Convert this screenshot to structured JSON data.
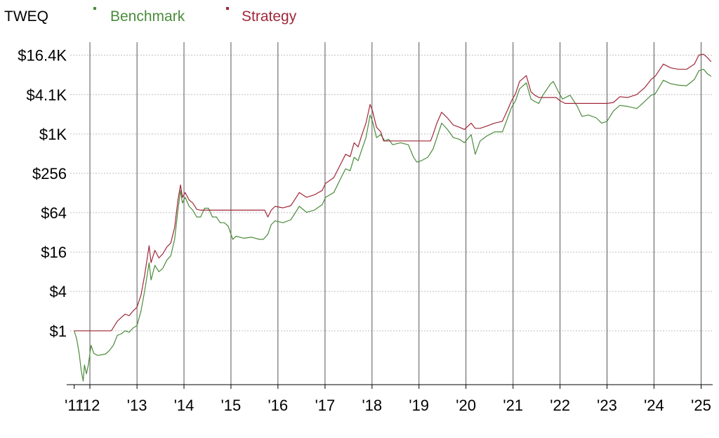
{
  "title": "TWEQ",
  "colors": {
    "benchmark": "#4b8b3b",
    "strategy": "#a0283a",
    "text": "#000000",
    "grid_major": "#555555",
    "grid_minor": "#bfbfbf",
    "background": "#ffffff"
  },
  "chart_data": {
    "type": "line",
    "title": "TWEQ",
    "xlabel": "",
    "ylabel": "",
    "y_scale": "log2",
    "ylim": [
      0.15,
      26000
    ],
    "xlim": [
      "2011-08-01",
      "2025-04-01"
    ],
    "y_ticks": [
      {
        "value": 1,
        "label": "$1"
      },
      {
        "value": 4,
        "label": "$4"
      },
      {
        "value": 16,
        "label": "$16"
      },
      {
        "value": 64,
        "label": "$64"
      },
      {
        "value": 256,
        "label": "$256"
      },
      {
        "value": 1024,
        "label": "$1K"
      },
      {
        "value": 4096,
        "label": "$4.1K"
      },
      {
        "value": 16384,
        "label": "$16.4K"
      }
    ],
    "x_ticks": [
      {
        "date": "2011-09-01",
        "label": "'11"
      },
      {
        "date": "2012-01-01",
        "label": "'12"
      },
      {
        "date": "2013-01-01",
        "label": "'13"
      },
      {
        "date": "2014-01-01",
        "label": "'14"
      },
      {
        "date": "2015-01-01",
        "label": "'15"
      },
      {
        "date": "2016-01-01",
        "label": "'16"
      },
      {
        "date": "2017-01-01",
        "label": "'17"
      },
      {
        "date": "2018-01-01",
        "label": "'18"
      },
      {
        "date": "2019-01-01",
        "label": "'19"
      },
      {
        "date": "2020-01-01",
        "label": "'20"
      },
      {
        "date": "2021-01-01",
        "label": "'21"
      },
      {
        "date": "2022-01-01",
        "label": "'22"
      },
      {
        "date": "2023-01-01",
        "label": "'23"
      },
      {
        "date": "2024-01-01",
        "label": "'24"
      },
      {
        "date": "2025-01-01",
        "label": "'25"
      }
    ],
    "legend_position": "top",
    "grid": true,
    "series": [
      {
        "name": "Benchmark",
        "color": "#4b8b3b",
        "points": [
          [
            "2011-09-01",
            1.0
          ],
          [
            "2011-09-20",
            0.75
          ],
          [
            "2011-10-10",
            0.45
          ],
          [
            "2011-10-25",
            0.25
          ],
          [
            "2011-11-10",
            0.17
          ],
          [
            "2011-11-20",
            0.3
          ],
          [
            "2011-12-05",
            0.22
          ],
          [
            "2011-12-20",
            0.3
          ],
          [
            "2012-01-10",
            0.6
          ],
          [
            "2012-02-01",
            0.45
          ],
          [
            "2012-03-01",
            0.42
          ],
          [
            "2012-04-01",
            0.43
          ],
          [
            "2012-05-01",
            0.44
          ],
          [
            "2012-06-01",
            0.5
          ],
          [
            "2012-07-01",
            0.6
          ],
          [
            "2012-08-01",
            0.85
          ],
          [
            "2012-09-01",
            0.9
          ],
          [
            "2012-10-01",
            1.0
          ],
          [
            "2012-11-01",
            0.95
          ],
          [
            "2012-12-01",
            1.1
          ],
          [
            "2013-01-01",
            1.2
          ],
          [
            "2013-02-01",
            2.0
          ],
          [
            "2013-03-01",
            4.0
          ],
          [
            "2013-04-05",
            11.0
          ],
          [
            "2013-04-20",
            6.0
          ],
          [
            "2013-05-20",
            10.0
          ],
          [
            "2013-06-20",
            8.0
          ],
          [
            "2013-07-20",
            9.0
          ],
          [
            "2013-08-20",
            12.0
          ],
          [
            "2013-09-20",
            14.0
          ],
          [
            "2013-10-20",
            25.0
          ],
          [
            "2013-11-15",
            70.0
          ],
          [
            "2013-12-05",
            140.0
          ],
          [
            "2013-12-20",
            90.0
          ],
          [
            "2014-01-10",
            110.0
          ],
          [
            "2014-02-10",
            80.0
          ],
          [
            "2014-03-10",
            70.0
          ],
          [
            "2014-04-10",
            55.0
          ],
          [
            "2014-05-10",
            55.0
          ],
          [
            "2014-06-10",
            75.0
          ],
          [
            "2014-07-10",
            75.0
          ],
          [
            "2014-08-10",
            55.0
          ],
          [
            "2014-09-10",
            55.0
          ],
          [
            "2014-10-10",
            45.0
          ],
          [
            "2014-11-10",
            45.0
          ],
          [
            "2014-12-10",
            40.0
          ],
          [
            "2015-01-15",
            25.0
          ],
          [
            "2015-02-10",
            28.0
          ],
          [
            "2015-04-10",
            26.0
          ],
          [
            "2015-06-10",
            27.0
          ],
          [
            "2015-08-10",
            25.0
          ],
          [
            "2015-09-10",
            25.0
          ],
          [
            "2015-10-15",
            30.0
          ],
          [
            "2015-11-10",
            42.0
          ],
          [
            "2015-12-10",
            48.0
          ],
          [
            "2016-02-10",
            45.0
          ],
          [
            "2016-04-10",
            50.0
          ],
          [
            "2016-06-15",
            80.0
          ],
          [
            "2016-08-10",
            65.0
          ],
          [
            "2016-10-10",
            70.0
          ],
          [
            "2016-12-10",
            85.0
          ],
          [
            "2017-01-05",
            110.0
          ],
          [
            "2017-03-10",
            130.0
          ],
          [
            "2017-05-10",
            230.0
          ],
          [
            "2017-06-10",
            300.0
          ],
          [
            "2017-07-15",
            280.0
          ],
          [
            "2017-08-15",
            450.0
          ],
          [
            "2017-09-15",
            400.0
          ],
          [
            "2017-10-15",
            600.0
          ],
          [
            "2017-11-15",
            900.0
          ],
          [
            "2017-12-17",
            2000.0
          ],
          [
            "2018-01-05",
            1600.0
          ],
          [
            "2018-02-05",
            900.0
          ],
          [
            "2018-03-10",
            1000.0
          ],
          [
            "2018-04-10",
            800.0
          ],
          [
            "2018-05-10",
            850.0
          ],
          [
            "2018-06-10",
            700.0
          ],
          [
            "2018-08-10",
            750.0
          ],
          [
            "2018-10-10",
            700.0
          ],
          [
            "2018-11-20",
            450.0
          ],
          [
            "2018-12-15",
            380.0
          ],
          [
            "2019-01-20",
            400.0
          ],
          [
            "2019-03-10",
            450.0
          ],
          [
            "2019-04-20",
            600.0
          ],
          [
            "2019-05-20",
            900.0
          ],
          [
            "2019-06-26",
            1500.0
          ],
          [
            "2019-08-10",
            1200.0
          ],
          [
            "2019-09-25",
            900.0
          ],
          [
            "2019-11-10",
            850.0
          ],
          [
            "2019-12-20",
            750.0
          ],
          [
            "2020-02-10",
            1000.0
          ],
          [
            "2020-03-13",
            500.0
          ],
          [
            "2020-04-20",
            800.0
          ],
          [
            "2020-06-10",
            950.0
          ],
          [
            "2020-08-10",
            1100.0
          ],
          [
            "2020-10-10",
            1100.0
          ],
          [
            "2020-11-20",
            1800.0
          ],
          [
            "2020-12-20",
            2600.0
          ],
          [
            "2021-01-20",
            3300.0
          ],
          [
            "2021-02-20",
            5000.0
          ],
          [
            "2021-04-14",
            6200.0
          ],
          [
            "2021-05-20",
            3500.0
          ],
          [
            "2021-06-20",
            3200.0
          ],
          [
            "2021-07-20",
            3000.0
          ],
          [
            "2021-08-20",
            4000.0
          ],
          [
            "2021-10-20",
            6000.0
          ],
          [
            "2021-11-10",
            6500.0
          ],
          [
            "2021-12-20",
            4500.0
          ],
          [
            "2022-01-20",
            3500.0
          ],
          [
            "2022-03-20",
            4000.0
          ],
          [
            "2022-05-15",
            2700.0
          ],
          [
            "2022-06-20",
            1900.0
          ],
          [
            "2022-08-10",
            2000.0
          ],
          [
            "2022-10-10",
            1800.0
          ],
          [
            "2022-11-20",
            1500.0
          ],
          [
            "2023-01-01",
            1600.0
          ],
          [
            "2023-02-20",
            2300.0
          ],
          [
            "2023-04-10",
            2800.0
          ],
          [
            "2023-06-10",
            2700.0
          ],
          [
            "2023-08-20",
            2500.0
          ],
          [
            "2023-10-20",
            3200.0
          ],
          [
            "2023-12-10",
            4000.0
          ],
          [
            "2024-01-10",
            4200.0
          ],
          [
            "2024-03-14",
            6800.0
          ],
          [
            "2024-05-10",
            6000.0
          ],
          [
            "2024-07-10",
            5700.0
          ],
          [
            "2024-09-10",
            5600.0
          ],
          [
            "2024-11-10",
            7000.0
          ],
          [
            "2024-12-15",
            9500.0
          ],
          [
            "2025-01-20",
            10000.0
          ],
          [
            "2025-02-20",
            8500.0
          ],
          [
            "2025-03-20",
            7800.0
          ]
        ]
      },
      {
        "name": "Strategy",
        "color": "#a0283a",
        "points": [
          [
            "2011-09-01",
            1.0
          ],
          [
            "2012-06-15",
            1.0
          ],
          [
            "2012-08-01",
            1.4
          ],
          [
            "2012-09-01",
            1.6
          ],
          [
            "2012-10-01",
            1.8
          ],
          [
            "2012-11-01",
            1.7
          ],
          [
            "2012-12-01",
            2.0
          ],
          [
            "2013-01-01",
            2.3
          ],
          [
            "2013-02-01",
            3.5
          ],
          [
            "2013-03-01",
            7.0
          ],
          [
            "2013-04-05",
            20.0
          ],
          [
            "2013-04-20",
            11.0
          ],
          [
            "2013-05-20",
            17.0
          ],
          [
            "2013-06-20",
            13.0
          ],
          [
            "2013-07-20",
            15.0
          ],
          [
            "2013-08-20",
            19.0
          ],
          [
            "2013-09-20",
            22.0
          ],
          [
            "2013-10-20",
            38.0
          ],
          [
            "2013-11-15",
            100.0
          ],
          [
            "2013-12-05",
            170.0
          ],
          [
            "2013-12-20",
            110.0
          ],
          [
            "2014-01-10",
            130.0
          ],
          [
            "2014-02-10",
            100.0
          ],
          [
            "2014-03-10",
            90.0
          ],
          [
            "2014-04-10",
            72.0
          ],
          [
            "2014-05-10",
            70.0
          ],
          [
            "2014-06-15",
            70.0
          ],
          [
            "2014-08-01",
            70.0
          ],
          [
            "2015-09-20",
            70.0
          ],
          [
            "2015-10-15",
            55.0
          ],
          [
            "2015-11-10",
            70.0
          ],
          [
            "2015-12-10",
            80.0
          ],
          [
            "2016-02-10",
            76.0
          ],
          [
            "2016-04-10",
            82.0
          ],
          [
            "2016-06-15",
            130.0
          ],
          [
            "2016-08-10",
            110.0
          ],
          [
            "2016-10-10",
            120.0
          ],
          [
            "2016-12-10",
            140.0
          ],
          [
            "2017-01-05",
            180.0
          ],
          [
            "2017-03-10",
            220.0
          ],
          [
            "2017-05-10",
            380.0
          ],
          [
            "2017-06-10",
            500.0
          ],
          [
            "2017-07-15",
            460.0
          ],
          [
            "2017-08-15",
            750.0
          ],
          [
            "2017-09-15",
            650.0
          ],
          [
            "2017-10-15",
            1000.0
          ],
          [
            "2017-11-15",
            1500.0
          ],
          [
            "2017-12-17",
            2900.0
          ],
          [
            "2018-01-05",
            2300.0
          ],
          [
            "2018-02-05",
            1300.0
          ],
          [
            "2018-03-10",
            1100.0
          ],
          [
            "2018-04-01",
            800.0
          ],
          [
            "2019-04-01",
            800.0
          ],
          [
            "2019-04-20",
            1000.0
          ],
          [
            "2019-05-20",
            1500.0
          ],
          [
            "2019-06-26",
            2200.0
          ],
          [
            "2019-08-10",
            1800.0
          ],
          [
            "2019-09-25",
            1400.0
          ],
          [
            "2019-11-10",
            1300.0
          ],
          [
            "2019-12-20",
            1200.0
          ],
          [
            "2020-02-10",
            1500.0
          ],
          [
            "2020-03-13",
            1250.0
          ],
          [
            "2020-04-20",
            1250.0
          ],
          [
            "2020-06-10",
            1350.0
          ],
          [
            "2020-08-10",
            1500.0
          ],
          [
            "2020-10-10",
            1600.0
          ],
          [
            "2020-11-20",
            2400.0
          ],
          [
            "2020-12-20",
            3300.0
          ],
          [
            "2021-01-20",
            4200.0
          ],
          [
            "2021-02-20",
            6500.0
          ],
          [
            "2021-04-14",
            8000.0
          ],
          [
            "2021-05-20",
            4500.0
          ],
          [
            "2021-06-20",
            4000.0
          ],
          [
            "2021-07-20",
            3700.0
          ],
          [
            "2021-08-20",
            3700.0
          ],
          [
            "2021-10-20",
            3700.0
          ],
          [
            "2021-12-01",
            3700.0
          ],
          [
            "2022-01-01",
            3300.0
          ],
          [
            "2022-02-10",
            3000.0
          ],
          [
            "2023-01-01",
            3000.0
          ],
          [
            "2023-02-20",
            3100.0
          ],
          [
            "2023-04-10",
            3800.0
          ],
          [
            "2023-06-10",
            3700.0
          ],
          [
            "2023-08-20",
            4100.0
          ],
          [
            "2023-10-20",
            5200.0
          ],
          [
            "2023-12-10",
            7000.0
          ],
          [
            "2024-01-10",
            7800.0
          ],
          [
            "2024-03-14",
            12000.0
          ],
          [
            "2024-05-10",
            10500.0
          ],
          [
            "2024-07-10",
            10000.0
          ],
          [
            "2024-09-10",
            10000.0
          ],
          [
            "2024-11-10",
            12000.0
          ],
          [
            "2024-12-15",
            16500.0
          ],
          [
            "2025-01-20",
            17000.0
          ],
          [
            "2025-02-20",
            15000.0
          ],
          [
            "2025-03-20",
            13000.0
          ]
        ]
      }
    ]
  }
}
